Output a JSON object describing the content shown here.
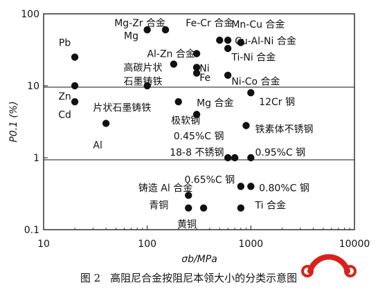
{
  "chart_data": {
    "type": "scatter",
    "xscale": "log",
    "yscale": "log",
    "xlim": [
      10,
      10000
    ],
    "ylim": [
      0.1,
      100
    ],
    "xlabel": "σb/MPa",
    "ylabel": "P0.1 (%)",
    "xticks": [
      "10",
      "100",
      "1000",
      "10000"
    ],
    "yticks": [
      "0.1",
      "1",
      "10",
      "100"
    ],
    "grid": "dividing lines at 10% and 1%",
    "points": [
      {
        "x": 20,
        "y": 25
      },
      {
        "x": 100,
        "y": 60
      },
      {
        "x": 150,
        "y": 60
      },
      {
        "x": 500,
        "y": 43
      },
      {
        "x": 600,
        "y": 43
      },
      {
        "x": 800,
        "y": 40
      },
      {
        "x": 600,
        "y": 33
      },
      {
        "x": 300,
        "y": 28
      },
      {
        "x": 180,
        "y": 20
      },
      {
        "x": 300,
        "y": 18
      },
      {
        "x": 300,
        "y": 15
      },
      {
        "x": 600,
        "y": 14
      },
      {
        "x": 20,
        "y": 10
      },
      {
        "x": 100,
        "y": 10
      },
      {
        "x": 1000,
        "y": 8
      },
      {
        "x": 20,
        "y": 6
      },
      {
        "x": 200,
        "y": 6
      },
      {
        "x": 300,
        "y": 4
      },
      {
        "x": 40,
        "y": 3
      },
      {
        "x": 900,
        "y": 2.8
      },
      {
        "x": 600,
        "y": 1
      },
      {
        "x": 700,
        "y": 1
      },
      {
        "x": 1000,
        "y": 1
      },
      {
        "x": 250,
        "y": 0.3
      },
      {
        "x": 800,
        "y": 0.4
      },
      {
        "x": 1000,
        "y": 0.4
      },
      {
        "x": 250,
        "y": 0.2
      },
      {
        "x": 350,
        "y": 0.2
      },
      {
        "x": 800,
        "y": 0.2
      }
    ],
    "labels": [
      {
        "text": "Pb",
        "x": 16,
        "y": 40,
        "anchor": "middle"
      },
      {
        "text": "Mg-Zr 合金",
        "x": 150,
        "y": 75,
        "anchor": "end"
      },
      {
        "text": "Mg",
        "x": 70,
        "y": 50,
        "anchor": "middle"
      },
      {
        "text": "Fe-Cr 合金",
        "x": 400,
        "y": 75,
        "anchor": "middle"
      },
      {
        "text": "Mn-Cu 合金",
        "x": 650,
        "y": 72,
        "anchor": "start"
      },
      {
        "text": "Cu-Al-Ni 合金",
        "x": 700,
        "y": 42,
        "anchor": "start"
      },
      {
        "text": "Al-Zn 合金",
        "x": 170,
        "y": 28,
        "anchor": "middle"
      },
      {
        "text": "Ti-Ni 合金",
        "x": 650,
        "y": 25,
        "anchor": "start"
      },
      {
        "text": "高碳片状",
        "x": 140,
        "y": 18,
        "anchor": "end"
      },
      {
        "text": "石墨铸铁",
        "x": 140,
        "y": 11.5,
        "anchor": "end"
      },
      {
        "text": "Ni",
        "x": 320,
        "y": 17.5,
        "anchor": "start"
      },
      {
        "text": "Fe",
        "x": 320,
        "y": 13,
        "anchor": "start"
      },
      {
        "text": "Ni-Co 合金",
        "x": 650,
        "y": 11.5,
        "anchor": "start"
      },
      {
        "text": "Zn",
        "x": 16,
        "y": 7.2,
        "anchor": "middle"
      },
      {
        "text": "片状石墨铸铁",
        "x": 30,
        "y": 5,
        "anchor": "start"
      },
      {
        "text": "Mg 合金",
        "x": 300,
        "y": 5.8,
        "anchor": "start"
      },
      {
        "text": "12Cr 钢",
        "x": 1200,
        "y": 6,
        "anchor": "start"
      },
      {
        "text": "Cd",
        "x": 16,
        "y": 4,
        "anchor": "middle"
      },
      {
        "text": "极软钢",
        "x": 170,
        "y": 3.3,
        "anchor": "start"
      },
      {
        "text": "铁素体不锈钢",
        "x": 1100,
        "y": 2.5,
        "anchor": "start"
      },
      {
        "text": "Al",
        "x": 30,
        "y": 1.5,
        "anchor": "start"
      },
      {
        "text": "0.45%C 钢",
        "x": 550,
        "y": 2,
        "anchor": "end"
      },
      {
        "text": "18-8 不锈钢",
        "x": 550,
        "y": 1.2,
        "anchor": "end"
      },
      {
        "text": "0.95%C 钢",
        "x": 1100,
        "y": 1.2,
        "anchor": "start"
      },
      {
        "text": "0.65%C 钢",
        "x": 700,
        "y": 0.5,
        "anchor": "end"
      },
      {
        "text": "铸造 Al 合金",
        "x": 150,
        "y": 0.38,
        "anchor": "middle"
      },
      {
        "text": "0.80%C 钢",
        "x": 1200,
        "y": 0.38,
        "anchor": "start"
      },
      {
        "text": "青铜",
        "x": 160,
        "y": 0.22,
        "anchor": "end"
      },
      {
        "text": "Ti 合金",
        "x": 1100,
        "y": 0.22,
        "anchor": "start"
      },
      {
        "text": "黄铜",
        "x": 300,
        "y": 0.12,
        "anchor": "end"
      }
    ]
  },
  "caption": {
    "figure_no": "图 2",
    "text": "高阻尼合金按阻尼本领大小的分类示意图"
  },
  "colors": {
    "ink": "#111111",
    "logo": "#d9221c"
  }
}
